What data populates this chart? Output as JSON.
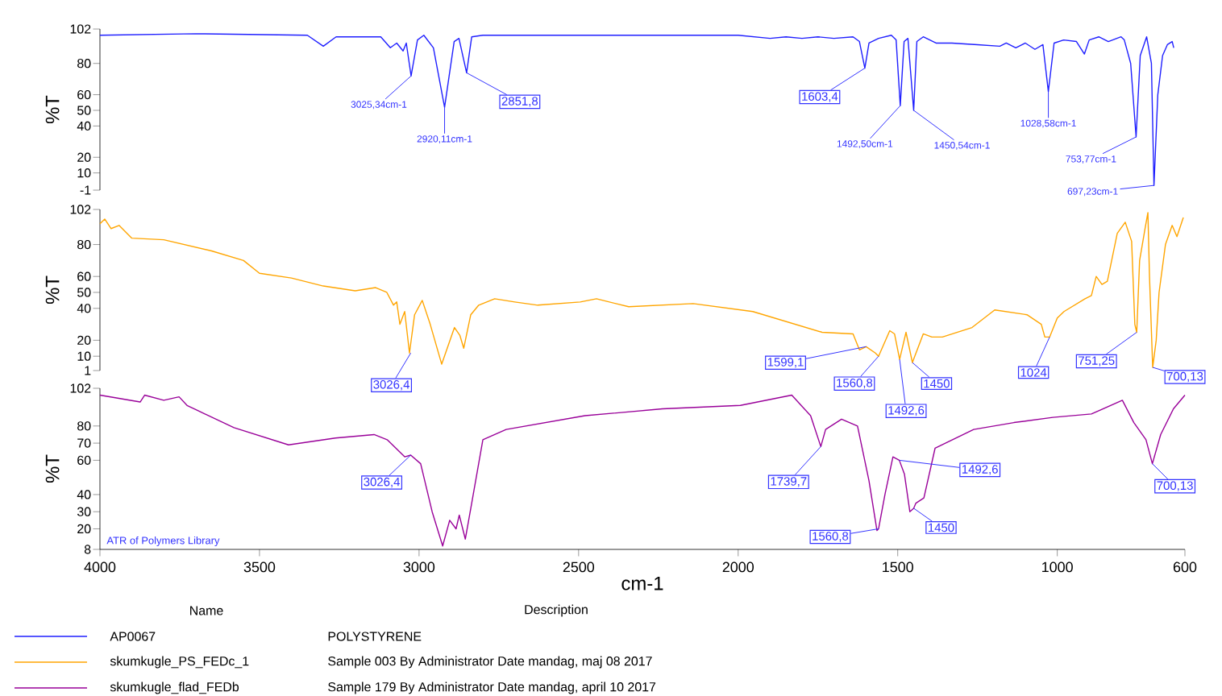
{
  "chart_data": [
    {
      "type": "line",
      "ylabel": "%T",
      "xlim": [
        4000,
        600
      ],
      "xticks": [
        4000,
        3500,
        3000,
        2500,
        2000,
        1500,
        1000,
        600
      ],
      "ylim": [
        -1,
        102
      ],
      "yticks": [
        102,
        80,
        60,
        50,
        40,
        20,
        10,
        -1
      ],
      "tick_labels": "y",
      "legend": "bottom",
      "x": [
        4000,
        3700,
        3350,
        3300,
        3260,
        3120,
        3090,
        3070,
        3050,
        3040,
        3025,
        3005,
        2985,
        2955,
        2920,
        2890,
        2875,
        2851,
        2835,
        2800,
        2400,
        2000,
        1900,
        1850,
        1800,
        1750,
        1700,
        1640,
        1620,
        1603,
        1590,
        1560,
        1520,
        1505,
        1492,
        1480,
        1468,
        1450,
        1440,
        1420,
        1380,
        1330,
        1250,
        1180,
        1160,
        1130,
        1100,
        1070,
        1045,
        1028,
        1010,
        980,
        940,
        915,
        900,
        870,
        840,
        800,
        790,
        770,
        753,
        740,
        720,
        705,
        697,
        685,
        670,
        655,
        640,
        635
      ],
      "series": [
        {
          "name": "AP0067",
          "color": "#1f1fff",
          "values": [
            98,
            99,
            98,
            91,
            97,
            97,
            90,
            93,
            88,
            93,
            72,
            95,
            98,
            90,
            52,
            94,
            96,
            74,
            97,
            98,
            98,
            98,
            96,
            97,
            96,
            97,
            96,
            97,
            94,
            77,
            93,
            96,
            98,
            95,
            53,
            94,
            96,
            50,
            94,
            97,
            93,
            93,
            92,
            91,
            93,
            90,
            93,
            89,
            92,
            62,
            93,
            95,
            94,
            86,
            95,
            97,
            94,
            97,
            95,
            80,
            33,
            85,
            97,
            80,
            2,
            60,
            85,
            92,
            94,
            90
          ]
        }
      ],
      "annotations": [
        "POLYSTYRENE",
        "Name",
        "Description",
        {
          "text": "3025,34cm-1",
          "x": 3025,
          "y": 72
        },
        {
          "text": "2920,11cm-1",
          "x": 2920,
          "y": 52
        },
        {
          "text": "2851,8",
          "x": 2851,
          "y": 74
        },
        {
          "text": "1603,4",
          "x": 1603,
          "y": 77
        },
        {
          "text": "1492,50cm-1",
          "x": 1492,
          "y": 53
        },
        {
          "text": "1450,54cm-1",
          "x": 1450,
          "y": 50
        },
        {
          "text": "1028,58cm-1",
          "x": 1028,
          "y": 62
        },
        {
          "text": "753,77cm-1",
          "x": 753,
          "y": 33
        },
        {
          "text": "697,23cm-1",
          "x": 697,
          "y": 2
        }
      ]
    },
    {
      "type": "line",
      "ylabel": "%T",
      "xlim": [
        4000,
        600
      ],
      "xticks": [
        4000,
        3500,
        3000,
        2500,
        2000,
        1500,
        1000,
        600
      ],
      "ylim": [
        1,
        102
      ],
      "yticks": [
        102,
        80,
        60,
        50,
        40,
        20,
        10,
        1
      ],
      "tick_labels": "y",
      "legend": "bottom",
      "x": [
        4000,
        3985,
        3965,
        3940,
        3900,
        3800,
        3650,
        3550,
        3500,
        3400,
        3300,
        3200,
        3136,
        3101,
        3080,
        3070,
        3060,
        3045,
        3030,
        3014,
        2990,
        2965,
        2929,
        2889,
        2872,
        2860,
        2838,
        2813,
        2763,
        2700,
        2628,
        2495,
        2444,
        2343,
        2141,
        1954,
        1737,
        1640,
        1620,
        1599,
        1570,
        1560,
        1525,
        1510,
        1494,
        1474,
        1454,
        1420,
        1393,
        1360,
        1267,
        1196,
        1095,
        1050,
        1039,
        1024,
        1000,
        979,
        913,
        893,
        878,
        860,
        843,
        812,
        787,
        767,
        757,
        751,
        742,
        725,
        716,
        711,
        701,
        690,
        681,
        661,
        640,
        625,
        605
      ],
      "series": [
        {
          "name": "skumkugle_PS_FEDc_1",
          "color": "#ffa500",
          "values": [
            93,
            96,
            90,
            92,
            84,
            83,
            76,
            70,
            62,
            59,
            54,
            51,
            53,
            50,
            42,
            44,
            30,
            38,
            12,
            36,
            45,
            30,
            5,
            28,
            23,
            15,
            36,
            42,
            46,
            44,
            42,
            44,
            46,
            41,
            43,
            38,
            25,
            24,
            14,
            16,
            12,
            10,
            26,
            24,
            8,
            25,
            6,
            24,
            22,
            22,
            28,
            39,
            36,
            30,
            22,
            22,
            34,
            38,
            46,
            48,
            60,
            55,
            57,
            87,
            94,
            82,
            30,
            25,
            70,
            90,
            100,
            60,
            3,
            20,
            50,
            80,
            92,
            85,
            97
          ]
        }
      ],
      "annotations": [
        "Sample 003 By Administrator Date mandag, maj 08 2017",
        {
          "text": "3026,4",
          "x": 3026,
          "y": 12
        },
        {
          "text": "1599,1",
          "x": 1599,
          "y": 16
        },
        {
          "text": "1560,8",
          "x": 1560,
          "y": 10
        },
        {
          "text": "1492,6",
          "x": 1494,
          "y": 8
        },
        {
          "text": "1450",
          "x": 1454,
          "y": 6
        },
        {
          "text": "1024",
          "x": 1024,
          "y": 22
        },
        {
          "text": "751,25",
          "x": 751,
          "y": 25
        },
        {
          "text": "700,13",
          "x": 701,
          "y": 3
        }
      ]
    },
    {
      "type": "line",
      "xlabel": "cm-1",
      "ylabel": "%T",
      "xlim": [
        4000,
        600
      ],
      "xticks": [
        4000,
        3500,
        3000,
        2500,
        2000,
        1500,
        1000,
        600
      ],
      "ylim": [
        8,
        102
      ],
      "yticks": [
        102,
        80,
        70,
        60,
        40,
        30,
        20,
        8
      ],
      "legend": "bottom",
      "x": [
        4000,
        3874,
        3860,
        3800,
        3752,
        3727,
        3580,
        3409,
        3262,
        3141,
        3100,
        3045,
        3026,
        2995,
        2959,
        2926,
        2904,
        2884,
        2874,
        2855,
        2835,
        2800,
        2727,
        2480,
        2237,
        1993,
        1832,
        1773,
        1741,
        1726,
        1676,
        1626,
        1590,
        1565,
        1560,
        1540,
        1515,
        1495,
        1479,
        1462,
        1450,
        1443,
        1418,
        1383,
        1262,
        1136,
        1014,
        893,
        796,
        760,
        722,
        702,
        676,
        636,
        600
      ],
      "series": [
        {
          "name": "skumkugle_flad_FEDb",
          "color": "#990099",
          "values": [
            98,
            94,
            98,
            95,
            97,
            92,
            79,
            69,
            73,
            75,
            72,
            62,
            63,
            58,
            30,
            10,
            25,
            20,
            28,
            14,
            35,
            72,
            78,
            86,
            90,
            92,
            98,
            86,
            68,
            78,
            84,
            80,
            48,
            19,
            20,
            40,
            62,
            60,
            52,
            30,
            32,
            35,
            38,
            67,
            78,
            82,
            85,
            87,
            95,
            82,
            72,
            58,
            75,
            90,
            98
          ]
        }
      ],
      "annotations": [
        "Sample 179 By Administrator Date mandag, april 10 2017",
        "ATR of Polymers Library",
        {
          "text": "3026,4",
          "x": 3026,
          "y": 63
        },
        {
          "text": "1739,7",
          "x": 1741,
          "y": 68
        },
        {
          "text": "1560,8",
          "x": 1560,
          "y": 20
        },
        {
          "text": "1492,6",
          "x": 1495,
          "y": 60
        },
        {
          "text": "1450",
          "x": 1450,
          "y": 32
        },
        {
          "text": "700,13",
          "x": 702,
          "y": 58
        }
      ]
    }
  ]
}
